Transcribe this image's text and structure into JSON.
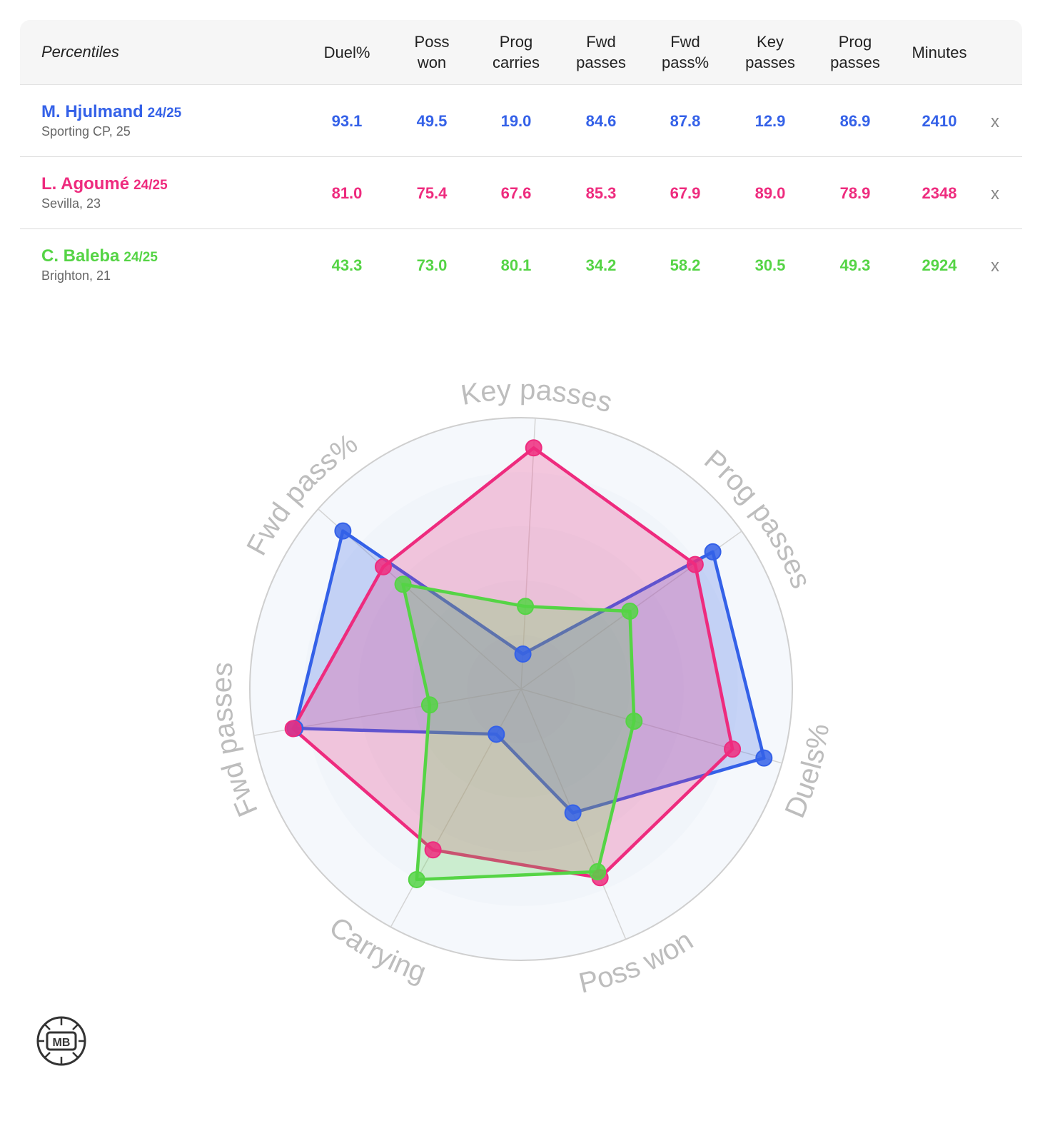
{
  "table": {
    "title": "Percentiles",
    "columns": [
      "Duel%",
      "Poss\nwon",
      "Prog\ncarries",
      "Fwd\npasses",
      "Fwd\npass%",
      "Key\npasses",
      "Prog\npasses",
      "Minutes"
    ],
    "remove_label": "x"
  },
  "players": [
    {
      "name": "M. Hjulmand",
      "season": "24/25",
      "meta": "Sporting CP, 25",
      "color": "#3461e8",
      "values": [
        "93.1",
        "49.5",
        "19.0",
        "84.6",
        "87.8",
        "12.9",
        "86.9",
        "2410"
      ]
    },
    {
      "name": "L. Agoumé",
      "season": "24/25",
      "meta": "Sevilla, 23",
      "color": "#ee2b7e",
      "values": [
        "81.0",
        "75.4",
        "67.6",
        "85.3",
        "67.9",
        "89.0",
        "78.9",
        "2348"
      ]
    },
    {
      "name": "C. Baleba",
      "season": "24/25",
      "meta": "Brighton, 21",
      "color": "#55d445",
      "values": [
        "43.3",
        "73.0",
        "80.1",
        "34.2",
        "58.2",
        "30.5",
        "49.3",
        "2924"
      ]
    }
  ],
  "chart_data": {
    "type": "radar",
    "axes": [
      "Key passes",
      "Prog passes",
      "Duels%",
      "Poss won",
      "Carrying",
      "Fwd passes",
      "Fwd pass%"
    ],
    "range": [
      0,
      100
    ],
    "series": [
      {
        "name": "M. Hjulmand",
        "color": "#3461e8",
        "values": [
          12.9,
          86.9,
          93.1,
          49.5,
          19.0,
          84.6,
          87.8
        ]
      },
      {
        "name": "L. Agoumé",
        "color": "#ee2b7e",
        "values": [
          89.0,
          78.9,
          81.0,
          75.4,
          67.6,
          85.3,
          67.9
        ]
      },
      {
        "name": "C. Baleba",
        "color": "#55d445",
        "values": [
          30.5,
          49.3,
          43.3,
          73.0,
          80.1,
          34.2,
          58.2
        ]
      }
    ]
  },
  "logo": {
    "text": "MB"
  }
}
